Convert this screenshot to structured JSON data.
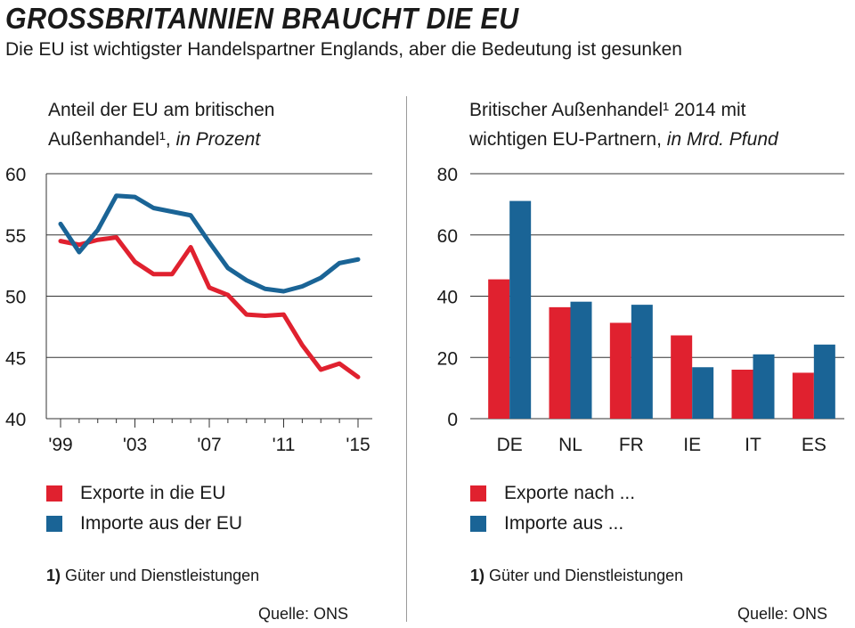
{
  "header": {
    "title": "GROSSBRITANNIEN BRAUCHT DIE EU",
    "subtitle": "Die EU ist wichtigster Handelspartner Englands, aber die Bedeutung ist gesunken"
  },
  "colors": {
    "exports": "#e0212f",
    "imports": "#1a6496",
    "grid": "#333333"
  },
  "left": {
    "title_line1": "Anteil der EU am britischen",
    "title_line2_main": "Außenhandel¹,",
    "title_line2_italic": "in Prozent",
    "legend_exports": "Exporte in die EU",
    "legend_imports": "Importe aus der EU",
    "footnote_num": "1)",
    "footnote_text": "Güter und Dienstleistungen",
    "source": "Quelle: ONS"
  },
  "right": {
    "title_line1": "Britischer Außenhandel¹ 2014 mit",
    "title_line2_main": "wichtigen EU-Partnern,",
    "title_line2_italic": "in Mrd. Pfund",
    "legend_exports": "Exporte nach ...",
    "legend_imports": "Importe aus ...",
    "footnote_num": "1)",
    "footnote_text": "Güter und Dienstleistungen",
    "source": "Quelle: ONS"
  },
  "chart_data": [
    {
      "type": "line",
      "title": "Anteil der EU am britischen Außenhandel¹, in Prozent",
      "x": [
        1999,
        2000,
        2001,
        2002,
        2003,
        2004,
        2005,
        2006,
        2007,
        2008,
        2009,
        2010,
        2011,
        2012,
        2013,
        2014,
        2015
      ],
      "xticks": [
        1999,
        2003,
        2007,
        2011,
        2015
      ],
      "xtick_labels": [
        "'99",
        "'03",
        "'07",
        "'11",
        "'15"
      ],
      "ylim": [
        40,
        60
      ],
      "yticks": [
        40,
        45,
        50,
        55,
        60
      ],
      "series": [
        {
          "name": "Exporte in die EU",
          "values": [
            54.5,
            54.2,
            54.6,
            54.8,
            52.8,
            51.8,
            51.8,
            54.0,
            50.7,
            50.1,
            48.5,
            48.4,
            48.5,
            46.0,
            44.0,
            44.5,
            43.4
          ]
        },
        {
          "name": "Importe aus der EU",
          "values": [
            55.9,
            53.6,
            55.4,
            58.2,
            58.1,
            57.2,
            56.9,
            56.6,
            54.4,
            52.3,
            51.3,
            50.6,
            50.4,
            50.8,
            51.5,
            52.7,
            53.0
          ]
        }
      ]
    },
    {
      "type": "bar",
      "title": "Britischer Außenhandel¹ 2014 mit wichtigen EU-Partnern, in Mrd. Pfund",
      "categories": [
        "DE",
        "NL",
        "FR",
        "IE",
        "IT",
        "ES"
      ],
      "ylim": [
        0,
        80
      ],
      "yticks": [
        0,
        20,
        40,
        60,
        80
      ],
      "series": [
        {
          "name": "Exporte nach ...",
          "values": [
            45.5,
            36.4,
            31.3,
            27.2,
            16.0,
            15.0
          ]
        },
        {
          "name": "Importe aus ...",
          "values": [
            71.1,
            38.2,
            37.2,
            16.8,
            21.0,
            24.2
          ]
        }
      ]
    }
  ]
}
